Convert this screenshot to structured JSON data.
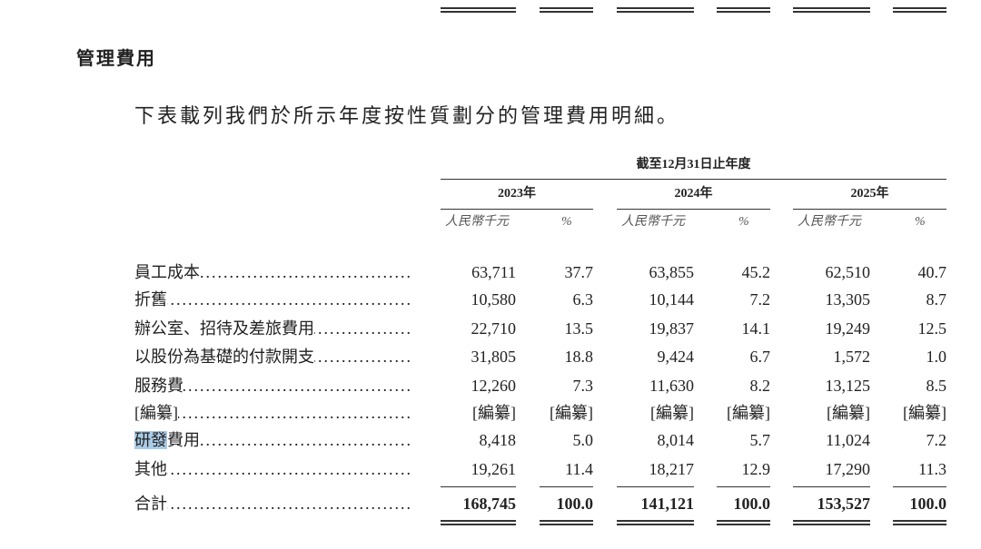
{
  "section_title": "管理費用",
  "intro": "下表載列我們於所示年度按性質劃分的管理費用明細。",
  "table": {
    "period_header": "截至12月31日止年度",
    "years": [
      "2023年",
      "2024年",
      "2025年"
    ],
    "amount_unit": "人民幣千元",
    "pct_unit": "%",
    "rows": [
      {
        "label": "員工成本",
        "values": [
          "63,711",
          "37.7",
          "63,855",
          "45.2",
          "62,510",
          "40.7"
        ]
      },
      {
        "label": "折舊",
        "values": [
          "10,580",
          "6.3",
          "10,144",
          "7.2",
          "13,305",
          "8.7"
        ]
      },
      {
        "label": "辦公室、招待及差旅費用",
        "values": [
          "22,710",
          "13.5",
          "19,837",
          "14.1",
          "19,249",
          "12.5"
        ]
      },
      {
        "label": "以股份為基礎的付款開支",
        "values": [
          "31,805",
          "18.8",
          "9,424",
          "6.7",
          "1,572",
          "1.0"
        ]
      },
      {
        "label": "服務費",
        "values": [
          "12,260",
          "7.3",
          "11,630",
          "8.2",
          "13,125",
          "8.5"
        ]
      },
      {
        "label": "[編纂]",
        "values": [
          "[編纂]",
          "[編纂]",
          "[編纂]",
          "[編纂]",
          "[編纂]",
          "[編纂]"
        ]
      },
      {
        "label_highlight": "研發",
        "label_rest": "費用",
        "values": [
          "8,418",
          "5.0",
          "8,014",
          "5.7",
          "11,024",
          "7.2"
        ]
      },
      {
        "label": "其他",
        "values": [
          "19,261",
          "11.4",
          "18,217",
          "12.9",
          "17,290",
          "11.3"
        ]
      }
    ],
    "total": {
      "label": "合計",
      "values": [
        "168,745",
        "100.0",
        "141,121",
        "100.0",
        "153,527",
        "100.0"
      ]
    }
  },
  "colors": {
    "highlight": "#a9cbe6"
  }
}
